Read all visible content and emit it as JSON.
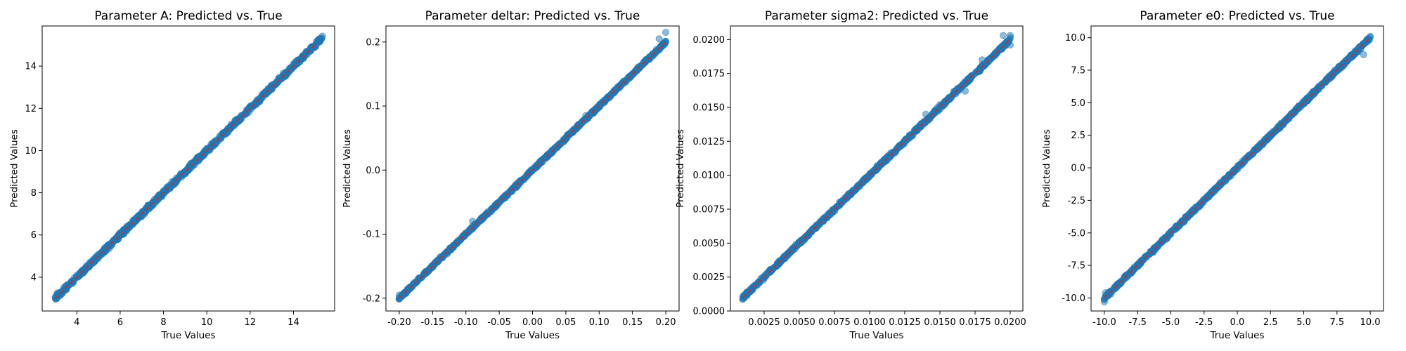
{
  "colors": {
    "points": "#1f77b4",
    "reference_line": "#d62728",
    "background": "#ffffff",
    "axes": "#000000"
  },
  "chart_data": [
    {
      "type": "scatter",
      "title": "Parameter A: Predicted vs. True",
      "xlabel": "True Values",
      "ylabel": "Predicted Values",
      "xlim": [
        2.4,
        15.9
      ],
      "ylim": [
        2.4,
        15.9
      ],
      "xticks": [
        4,
        6,
        8,
        10,
        12,
        14
      ],
      "yticks": [
        4,
        6,
        8,
        10,
        12,
        14
      ],
      "xtick_labels": [
        "4",
        "6",
        "8",
        "10",
        "12",
        "14"
      ],
      "ytick_labels": [
        "4",
        "6",
        "8",
        "10",
        "12",
        "14"
      ],
      "range": [
        3.0,
        15.3
      ],
      "spread": 0.1,
      "reference_line": {
        "x": [
          3.0,
          15.0
        ],
        "y": [
          3.0,
          15.0
        ],
        "style": "dashed"
      },
      "points": [
        [
          3.0,
          3.05
        ],
        [
          3.1,
          3.25
        ],
        [
          3.3,
          3.2
        ],
        [
          3.5,
          3.6
        ],
        [
          3.8,
          3.7
        ],
        [
          4.0,
          4.1
        ],
        [
          4.3,
          4.2
        ],
        [
          4.6,
          4.7
        ],
        [
          5.0,
          4.9
        ],
        [
          5.3,
          5.4
        ],
        [
          5.6,
          5.5
        ],
        [
          6.0,
          6.1
        ],
        [
          6.3,
          6.2
        ],
        [
          6.6,
          6.7
        ],
        [
          7.0,
          6.9
        ],
        [
          7.3,
          7.4
        ],
        [
          7.6,
          7.5
        ],
        [
          8.0,
          8.1
        ],
        [
          8.3,
          8.2
        ],
        [
          8.6,
          8.7
        ],
        [
          9.0,
          8.9
        ],
        [
          9.3,
          9.4
        ],
        [
          9.6,
          9.5
        ],
        [
          10.0,
          10.1
        ],
        [
          10.3,
          10.2
        ],
        [
          10.6,
          10.7
        ],
        [
          11.0,
          10.9
        ],
        [
          11.3,
          11.4
        ],
        [
          11.6,
          11.5
        ],
        [
          12.0,
          12.1
        ],
        [
          12.3,
          12.2
        ],
        [
          12.6,
          12.7
        ],
        [
          13.0,
          12.9
        ],
        [
          13.3,
          13.4
        ],
        [
          13.6,
          13.5
        ],
        [
          14.0,
          14.1
        ],
        [
          14.3,
          14.2
        ],
        [
          14.6,
          14.7
        ],
        [
          14.8,
          14.9
        ],
        [
          15.0,
          14.9
        ],
        [
          15.1,
          15.2
        ],
        [
          15.2,
          15.3
        ]
      ]
    },
    {
      "type": "scatter",
      "title": "Parameter deltar: Predicted vs. True",
      "xlabel": "True Values",
      "ylabel": "Predicted Values",
      "xlim": [
        -0.22,
        0.22
      ],
      "ylim": [
        -0.22,
        0.225
      ],
      "xticks": [
        -0.2,
        -0.15,
        -0.1,
        -0.05,
        0.0,
        0.05,
        0.1,
        0.15,
        0.2
      ],
      "yticks": [
        -0.2,
        -0.1,
        0.0,
        0.1,
        0.2
      ],
      "xtick_labels": [
        "-0.20",
        "-0.15",
        "-0.10",
        "-0.05",
        "0.00",
        "0.05",
        "0.10",
        "0.15",
        "0.20"
      ],
      "ytick_labels": [
        "-0.2",
        "-0.1",
        "0.0",
        "0.1",
        "0.2"
      ],
      "range": [
        -0.2,
        0.2
      ],
      "spread": 0.002,
      "reference_line": {
        "x": [
          -0.2,
          0.2
        ],
        "y": [
          -0.2,
          0.2
        ],
        "style": "dashed"
      },
      "points": [
        [
          -0.2,
          -0.195
        ],
        [
          -0.19,
          -0.192
        ],
        [
          -0.15,
          -0.152
        ],
        [
          -0.1,
          -0.098
        ],
        [
          -0.09,
          -0.08
        ],
        [
          -0.05,
          -0.05
        ],
        [
          0.0,
          0.0
        ],
        [
          0.05,
          0.05
        ],
        [
          0.08,
          0.085
        ],
        [
          0.1,
          0.1
        ],
        [
          0.15,
          0.15
        ],
        [
          0.19,
          0.205
        ],
        [
          0.2,
          0.215
        ],
        [
          0.2,
          0.2
        ]
      ]
    },
    {
      "type": "scatter",
      "title": "Parameter sigma2: Predicted vs. True",
      "xlabel": "True Values",
      "ylabel": "Predicted Values",
      "xlim": [
        0.0001,
        0.0209
      ],
      "ylim": [
        0.0,
        0.021
      ],
      "xticks": [
        0.0025,
        0.005,
        0.0075,
        0.01,
        0.0125,
        0.015,
        0.0175,
        0.02
      ],
      "yticks": [
        0.0,
        0.0025,
        0.005,
        0.0075,
        0.01,
        0.0125,
        0.015,
        0.0175,
        0.02
      ],
      "xtick_labels": [
        "0.0025",
        "0.0050",
        "0.0075",
        "0.0100",
        "0.0125",
        "0.0150",
        "0.0175",
        "0.0200"
      ],
      "ytick_labels": [
        "0.0000",
        "0.0025",
        "0.0050",
        "0.0075",
        "0.0100",
        "0.0125",
        "0.0150",
        "0.0175",
        "0.0200"
      ],
      "range": [
        0.001,
        0.02
      ],
      "spread": 0.00012,
      "reference_line": {
        "x": [
          0.001,
          0.02
        ],
        "y": [
          0.001,
          0.02
        ],
        "style": "dashed"
      },
      "points": [
        [
          0.001,
          0.0011
        ],
        [
          0.002,
          0.0019
        ],
        [
          0.005,
          0.005
        ],
        [
          0.01,
          0.01
        ],
        [
          0.014,
          0.0145
        ],
        [
          0.015,
          0.0152
        ],
        [
          0.016,
          0.0162
        ],
        [
          0.0168,
          0.0162
        ],
        [
          0.018,
          0.0185
        ],
        [
          0.0195,
          0.0203
        ],
        [
          0.02,
          0.0196
        ],
        [
          0.02,
          0.0203
        ]
      ]
    },
    {
      "type": "scatter",
      "title": "Parameter e0: Predicted vs. True",
      "xlabel": "True Values",
      "ylabel": "Predicted Values",
      "xlim": [
        -11.0,
        11.0
      ],
      "ylim": [
        -11.0,
        10.9
      ],
      "xticks": [
        -10,
        -7.5,
        -5,
        -2.5,
        0,
        2.5,
        5,
        7.5,
        10
      ],
      "yticks": [
        -10,
        -7.5,
        -5,
        -2.5,
        0,
        2.5,
        5,
        7.5,
        10
      ],
      "xtick_labels": [
        "-10.0",
        "-7.5",
        "-5.0",
        "-2.5",
        "0.0",
        "2.5",
        "5.0",
        "7.5",
        "10.0"
      ],
      "ytick_labels": [
        "-10.0",
        "-7.5",
        "-5.0",
        "-2.5",
        "0.0",
        "2.5",
        "5.0",
        "7.5",
        "10.0"
      ],
      "range": [
        -10.0,
        10.0
      ],
      "spread": 0.12,
      "reference_line": {
        "x": [
          -10.0,
          10.0
        ],
        "y": [
          -10.0,
          10.0
        ],
        "style": "dashed"
      },
      "points": [
        [
          -10.0,
          -10.3
        ],
        [
          -9.9,
          -9.6
        ],
        [
          -9.5,
          -9.7
        ],
        [
          -7.5,
          -7.5
        ],
        [
          -5.0,
          -5.1
        ],
        [
          -2.5,
          -2.4
        ],
        [
          0.0,
          0.0
        ],
        [
          2.5,
          2.6
        ],
        [
          5.0,
          4.9
        ],
        [
          7.5,
          7.5
        ],
        [
          9.5,
          8.7
        ],
        [
          9.8,
          9.9
        ],
        [
          10.0,
          10.1
        ]
      ]
    }
  ]
}
